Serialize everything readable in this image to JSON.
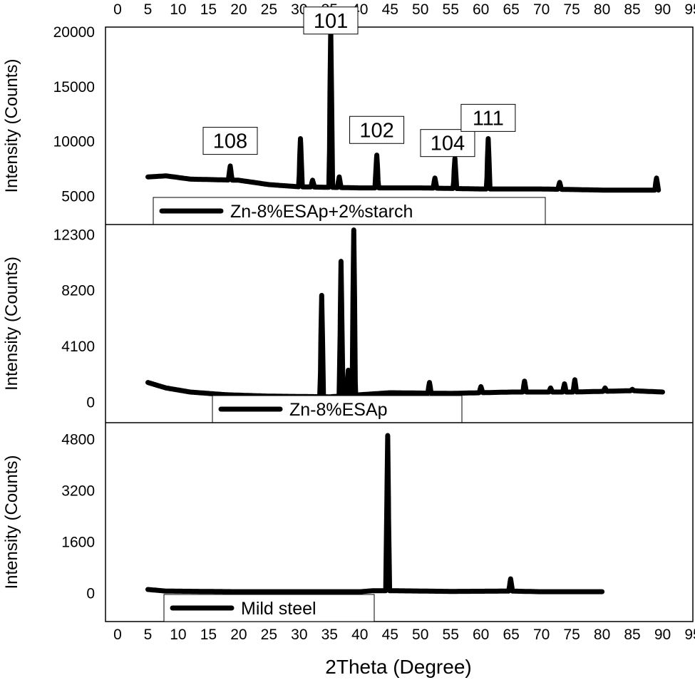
{
  "chart_data": {
    "type": "line",
    "xlabel": "2Theta (Degree)",
    "x_ticks": [
      0,
      5,
      10,
      15,
      20,
      25,
      30,
      35,
      40,
      45,
      50,
      55,
      60,
      65,
      70,
      75,
      80,
      85,
      90,
      95
    ],
    "xlim": [
      -2,
      95
    ],
    "panels": [
      {
        "name": "Zn-8%ESAp+2%starch",
        "ylabel": "Intensity (Counts)",
        "y_ticks": [
          5000,
          10000,
          15000,
          20000
        ],
        "ylim": [
          2350,
          20400
        ],
        "legend_position": "bottom-left",
        "baseline": [
          [
            5,
            6700
          ],
          [
            8,
            6800
          ],
          [
            12,
            6500
          ],
          [
            20,
            6400
          ],
          [
            25,
            6000
          ],
          [
            30,
            5800
          ],
          [
            40,
            5700
          ],
          [
            50,
            5700
          ],
          [
            60,
            5600
          ],
          [
            70,
            5600
          ],
          [
            80,
            5500
          ],
          [
            89,
            5500
          ]
        ],
        "peaks": [
          {
            "x": 18.6,
            "y": 7700
          },
          {
            "x": 30.2,
            "y": 10200
          },
          {
            "x": 32.2,
            "y": 6400
          },
          {
            "x": 35.2,
            "y": 20400,
            "label": "101"
          },
          {
            "x": 36.6,
            "y": 6700
          },
          {
            "x": 42.8,
            "y": 8700,
            "label": "102"
          },
          {
            "x": 52.4,
            "y": 6600
          },
          {
            "x": 55.7,
            "y": 8400,
            "label": "104"
          },
          {
            "x": 61.2,
            "y": 10200,
            "label": "111"
          },
          {
            "x": 73.0,
            "y": 6200
          },
          {
            "x": 89.0,
            "y": 6600
          }
        ],
        "peak_labels": [
          {
            "text": "108",
            "x": 18.6,
            "y": 10000
          },
          {
            "text": "101",
            "x": 35.2,
            "y": 21000
          },
          {
            "text": "102",
            "x": 42.8,
            "y": 11000
          },
          {
            "text": "104",
            "x": 54.5,
            "y": 9800
          },
          {
            "text": "111",
            "x": 61.2,
            "y": 12100
          }
        ]
      },
      {
        "name": "Zn-8%ESAp",
        "ylabel": "Intensity (Counts)",
        "y_ticks": [
          0,
          4100,
          8200,
          12300
        ],
        "ylim": [
          -1550,
          13000
        ],
        "legend_position": "bottom-left",
        "baseline": [
          [
            5,
            1400
          ],
          [
            8,
            1000
          ],
          [
            12,
            700
          ],
          [
            18,
            500
          ],
          [
            25,
            400
          ],
          [
            35,
            350
          ],
          [
            40,
            500
          ],
          [
            45,
            650
          ],
          [
            55,
            600
          ],
          [
            65,
            700
          ],
          [
            75,
            700
          ],
          [
            85,
            800
          ],
          [
            90,
            700
          ]
        ],
        "peaks": [
          {
            "x": 33.7,
            "y": 7800
          },
          {
            "x": 36.9,
            "y": 10300
          },
          {
            "x": 38.1,
            "y": 2300
          },
          {
            "x": 39.0,
            "y": 12600
          },
          {
            "x": 51.5,
            "y": 1400
          },
          {
            "x": 60.0,
            "y": 1100
          },
          {
            "x": 67.2,
            "y": 1500
          },
          {
            "x": 71.5,
            "y": 1000
          },
          {
            "x": 73.8,
            "y": 1300
          },
          {
            "x": 75.5,
            "y": 1600
          },
          {
            "x": 80.5,
            "y": 1000
          },
          {
            "x": 85.0,
            "y": 900
          }
        ],
        "peak_labels": []
      },
      {
        "name": "Mild steel",
        "ylabel": "Intensity (Counts)",
        "y_ticks": [
          0,
          1600,
          3200,
          4800
        ],
        "ylim": [
          -900,
          5300
        ],
        "legend_position": "bottom-left",
        "baseline": [
          [
            5,
            100
          ],
          [
            8,
            50
          ],
          [
            20,
            30
          ],
          [
            30,
            30
          ],
          [
            40,
            30
          ],
          [
            42,
            60
          ],
          [
            46,
            60
          ],
          [
            55,
            40
          ],
          [
            65,
            50
          ],
          [
            70,
            30
          ],
          [
            80,
            30
          ]
        ],
        "peaks": [
          {
            "x": 44.6,
            "y": 4900
          },
          {
            "x": 64.9,
            "y": 430
          }
        ],
        "peak_labels": []
      }
    ]
  }
}
